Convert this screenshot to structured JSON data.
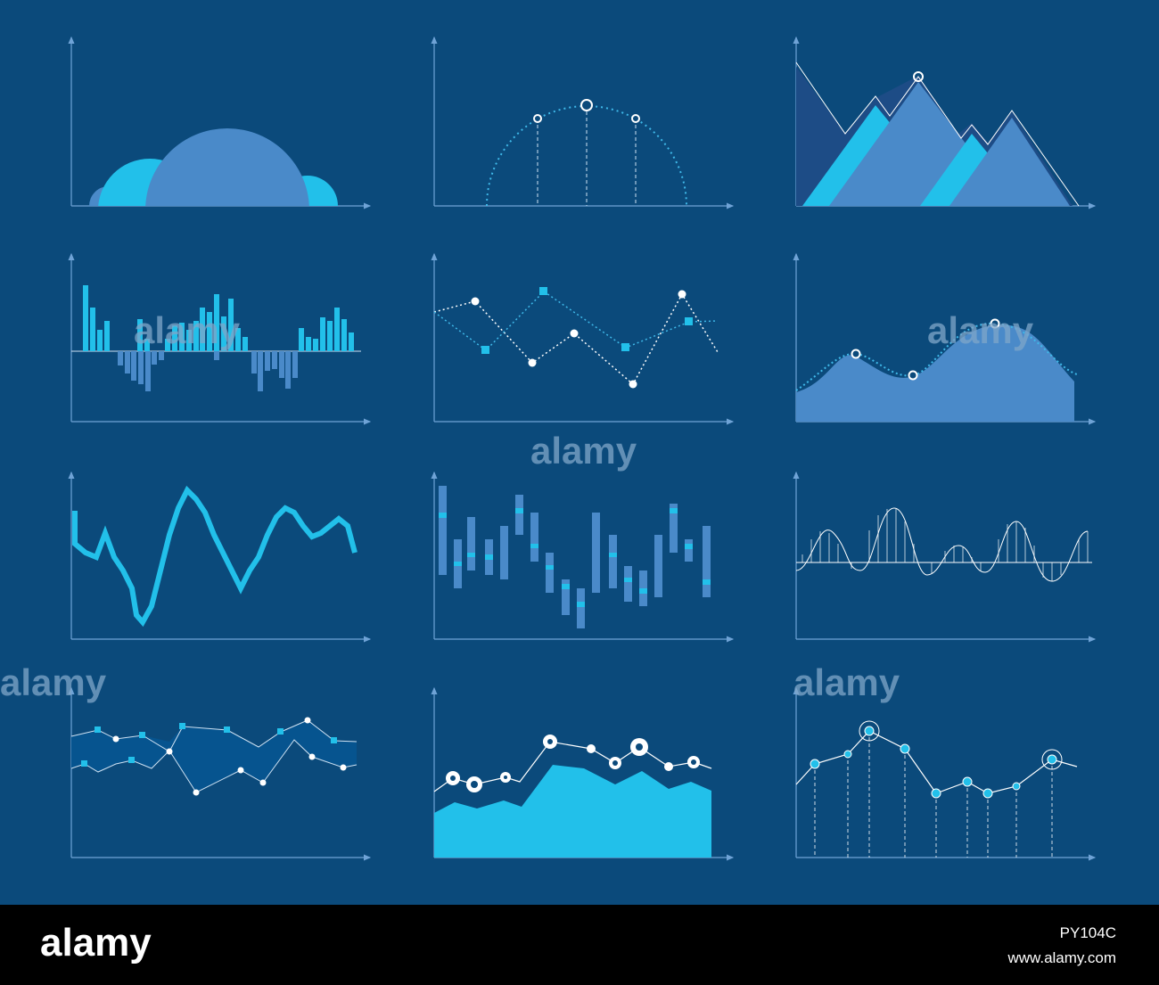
{
  "watermark": "alamy",
  "footer": {
    "brand": "alamy",
    "image_id": "PY104C",
    "url": "www.alamy.com"
  }
}
